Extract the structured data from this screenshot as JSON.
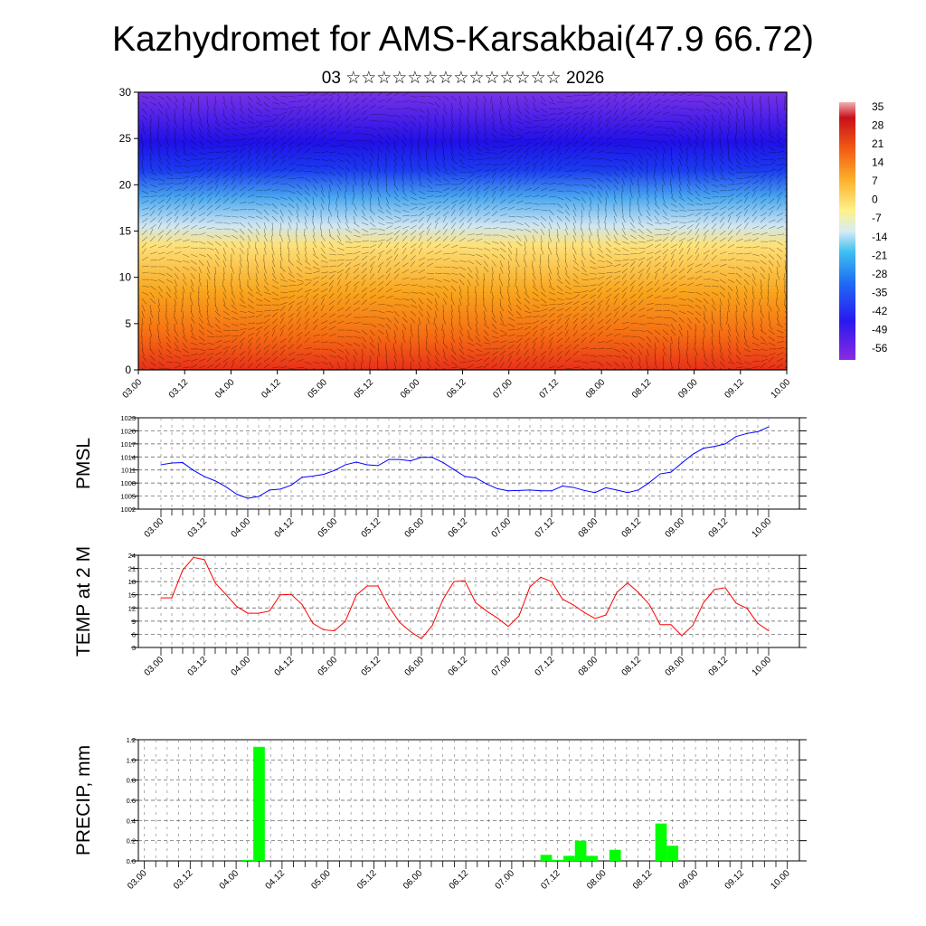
{
  "title": "Kazhydromet for AMS-Karsakbai(47.9 66.72)",
  "subtitle": "03 ☆☆☆☆☆☆☆☆☆☆☆☆☆☆ 2026",
  "chart_data": [
    {
      "type": "heatmap",
      "name": "vertical temperature cross-section with wind",
      "y_ticks": [
        "0",
        "5",
        "10",
        "15",
        "20",
        "25",
        "30"
      ],
      "ylim": [
        0,
        30
      ],
      "x_ticks": [
        "03.00",
        "03.12",
        "04.00",
        "04.12",
        "05.00",
        "05.12",
        "06.00",
        "06.12",
        "07.00",
        "07.12",
        "08.00",
        "08.12",
        "09.00",
        "09.12",
        "10.00"
      ],
      "colorbar_labels": [
        "35",
        "28",
        "21",
        "14",
        "7",
        "0",
        "-7",
        "-14",
        "-21",
        "-28",
        "-35",
        "-42",
        "-49",
        "-56"
      ],
      "approx_profile": {
        "height": [
          0,
          5,
          10,
          15,
          20,
          25,
          30
        ],
        "temp": [
          21,
          14,
          7,
          -14,
          -40,
          -56,
          -49
        ]
      }
    },
    {
      "type": "line",
      "ylabel": "PMSL",
      "ylim": [
        1002,
        1023
      ],
      "y_ticks": [
        "1002",
        "1005",
        "1008",
        "1011",
        "1014",
        "1017",
        "1020",
        "1023"
      ],
      "x_ticks": [
        "03.00",
        "03.12",
        "04.00",
        "04.12",
        "05.00",
        "05.12",
        "06.00",
        "06.12",
        "07.00",
        "07.12",
        "08.00",
        "08.12",
        "09.00",
        "09.12",
        "10.00"
      ],
      "step_hours": 3,
      "color": "#0000ff",
      "values": [
        1012.2,
        1012.6,
        1012.7,
        1010.9,
        1009.5,
        1008.5,
        1007.1,
        1005.4,
        1004.5,
        1004.9,
        1006.4,
        1006.6,
        1007.5,
        1009.3,
        1009.6,
        1010.0,
        1010.9,
        1012.2,
        1012.8,
        1012.2,
        1012.0,
        1013.4,
        1013.4,
        1013.1,
        1013.9,
        1013.9,
        1012.7,
        1011.1,
        1009.5,
        1009.2,
        1007.8,
        1006.7,
        1006.2,
        1006.3,
        1006.4,
        1006.2,
        1006.2,
        1007.3,
        1007.0,
        1006.3,
        1005.8,
        1006.9,
        1006.4,
        1005.8,
        1006.4,
        1008.1,
        1010.1,
        1010.5,
        1012.6,
        1014.6,
        1016.0,
        1016.4,
        1017.0,
        1018.7,
        1019.4,
        1019.8,
        1020.9
      ]
    },
    {
      "type": "line",
      "ylabel": "TEMP at 2 M",
      "ylim": [
        3,
        24
      ],
      "y_ticks": [
        "3",
        "6",
        "9",
        "12",
        "15",
        "18",
        "21",
        "24"
      ],
      "x_ticks": [
        "03.00",
        "03.12",
        "04.00",
        "04.12",
        "05.00",
        "05.12",
        "06.00",
        "06.12",
        "07.00",
        "07.12",
        "08.00",
        "08.12",
        "09.00",
        "09.12",
        "10.00"
      ],
      "step_hours": 3,
      "color": "#ff0000",
      "values": [
        14.3,
        14.3,
        20.6,
        23.5,
        23.0,
        17.7,
        15.0,
        12.3,
        10.8,
        10.8,
        11.3,
        15.0,
        15.1,
        12.8,
        8.5,
        7.0,
        6.8,
        9.0,
        14.9,
        17.0,
        17.0,
        12.3,
        8.7,
        6.6,
        5.0,
        8.0,
        14.0,
        18.0,
        18.2,
        13.2,
        11.3,
        9.7,
        7.8,
        10.2,
        16.8,
        19.0,
        18.0,
        14.0,
        12.7,
        11.0,
        9.6,
        10.4,
        15.5,
        17.7,
        15.5,
        12.8,
        8.2,
        8.2,
        5.7,
        8.0,
        13.2,
        16.2,
        16.6,
        13.1,
        11.9,
        8.5,
        6.8
      ]
    },
    {
      "type": "bar",
      "ylabel": "PRECIP, mm",
      "ylim": [
        0,
        1.2
      ],
      "y_ticks": [
        "0.0",
        "0.2",
        "0.4",
        "0.6",
        "0.8",
        "1.0",
        "1.2"
      ],
      "x_ticks": [
        "03.00",
        "03.12",
        "04.00",
        "04.12",
        "05.00",
        "05.12",
        "06.00",
        "06.12",
        "07.00",
        "07.12",
        "08.00",
        "08.12",
        "09.00",
        "09.12",
        "10.00"
      ],
      "step_hours": 3,
      "color": "#00ff00",
      "bars": [
        {
          "index": 9,
          "value": 0.01
        },
        {
          "index": 10,
          "value": 1.13
        },
        {
          "index": 35,
          "value": 0.06
        },
        {
          "index": 36,
          "value": 0.01
        },
        {
          "index": 37,
          "value": 0.05
        },
        {
          "index": 38,
          "value": 0.2
        },
        {
          "index": 39,
          "value": 0.05
        },
        {
          "index": 41,
          "value": 0.11
        },
        {
          "index": 45,
          "value": 0.37
        },
        {
          "index": 46,
          "value": 0.15
        }
      ]
    }
  ]
}
